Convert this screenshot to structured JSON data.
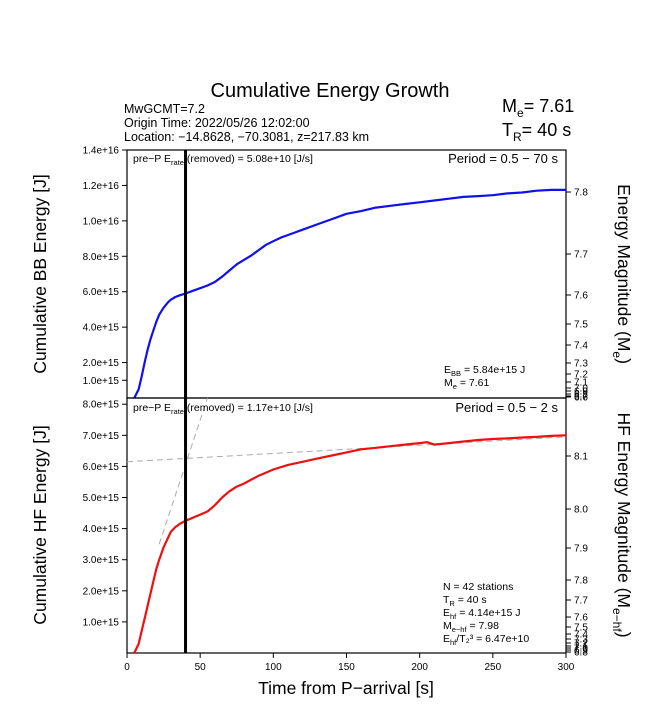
{
  "header": {
    "title": "Cumulative Energy Growth",
    "event_mag": "MwGCMT=7.2",
    "origin_time": "Origin Time: 2022/05/26 12:02:00",
    "location": "Location: −14.8628, −70.3081, z=217.83 km",
    "me_label": "M",
    "me_sub": "e",
    "me_value": "= 7.61",
    "tr_label": "T",
    "tr_sub": "R",
    "tr_value": "= 40 s"
  },
  "chart_data": [
    {
      "type": "line",
      "panel": "top",
      "xlim": [
        0,
        300
      ],
      "ylim": [
        0,
        1.4e+16
      ],
      "yticks": [
        "1.0e+15",
        "2.0e+15",
        "4.0e+15",
        "6.0e+15",
        "8.0e+15",
        "1.0e+16",
        "1.2e+16",
        "1.4e+16"
      ],
      "ytick_values": [
        1000000000000000.0,
        2000000000000000.0,
        4000000000000000.0,
        6000000000000000.0,
        8000000000000000.0,
        1e+16,
        1.2e+16,
        1.4e+16
      ],
      "right_ticks": [
        "6.6",
        "6.7",
        "6.8",
        "6.9",
        "7.0",
        "7.1",
        "7.2",
        "7.3",
        "7.4",
        "7.5",
        "7.6",
        "7.7",
        "7.8"
      ],
      "right_tick_values": [
        6.6,
        6.7,
        6.8,
        6.9,
        7.0,
        7.1,
        7.2,
        7.3,
        7.4,
        7.5,
        7.6,
        7.7,
        7.8
      ],
      "ylabel": "Cumulative BB Energy [J]",
      "ylabel_right": "Energy Magnitude (M",
      "ylabel_right_sub": "e",
      "ylabel_right_end": ")",
      "pre_p_a": "pre−P E",
      "pre_p_sub": "rate",
      "pre_p_b": " (removed) = 5.08e+10 [J/s]",
      "period": "Period = 0.5 − 70 s",
      "stat1_a": "E",
      "stat1_sub": "BB",
      "stat1_b": " = 5.84e+15 J",
      "stat2_a": "M",
      "stat2_sub": "e",
      "stat2_b": " = 7.61",
      "series": [
        {
          "color": "#1010ee",
          "x": [
            5,
            8,
            10,
            12,
            14,
            16,
            18,
            20,
            22,
            25,
            28,
            30,
            33,
            36,
            40,
            45,
            50,
            55,
            60,
            65,
            70,
            75,
            80,
            85,
            90,
            95,
            100,
            105,
            110,
            115,
            120,
            130,
            140,
            150,
            160,
            170,
            180,
            190,
            200,
            210,
            220,
            230,
            240,
            250,
            260,
            270,
            280,
            290,
            300
          ],
          "y": [
            0,
            500000000000000.0,
            1200000000000000.0,
            2000000000000000.0,
            2700000000000000.0,
            3300000000000000.0,
            3800000000000000.0,
            4300000000000000.0,
            4700000000000000.0,
            5100000000000000.0,
            5400000000000000.0,
            5550000000000000.0,
            5700000000000000.0,
            5800000000000000.0,
            5900000000000000.0,
            6050000000000000.0,
            6200000000000000.0,
            6350000000000000.0,
            6550000000000000.0,
            6850000000000000.0,
            7200000000000000.0,
            7550000000000000.0,
            7800000000000000.0,
            8050000000000000.0,
            8350000000000000.0,
            8650000000000000.0,
            8850000000000000.0,
            9050000000000000.0,
            9200000000000000.0,
            9350000000000000.0,
            9500000000000000.0,
            9800000000000000.0,
            1.01e+16,
            1.04e+16,
            1.055e+16,
            1.075e+16,
            1.085e+16,
            1.095e+16,
            1.105e+16,
            1.115e+16,
            1.125e+16,
            1.135e+16,
            1.14e+16,
            1.145e+16,
            1.155e+16,
            1.16e+16,
            1.17e+16,
            1.175e+16,
            1.175e+16
          ]
        }
      ],
      "vline_x": 40
    },
    {
      "type": "line",
      "panel": "bottom",
      "xlim": [
        0,
        300
      ],
      "ylim": [
        0,
        8200000000000000.0
      ],
      "xticks": [
        "0",
        "50",
        "100",
        "150",
        "200",
        "250",
        "300"
      ],
      "xtick_values": [
        0,
        50,
        100,
        150,
        200,
        250,
        300
      ],
      "xlabel": "Time from P−arrival [s]",
      "yticks": [
        "1.0e+15",
        "2.0e+15",
        "3.0e+15",
        "4.0e+15",
        "5.0e+15",
        "6.0e+15",
        "7.0e+15",
        "8.0e+15"
      ],
      "ytick_values": [
        1000000000000000.0,
        2000000000000000.0,
        3000000000000000.0,
        4000000000000000.0,
        5000000000000000.0,
        6000000000000000.0,
        7000000000000000.0,
        8000000000000000.0
      ],
      "right_ticks": [
        "6.8",
        "6.9",
        "7.0",
        "7.1",
        "7.2",
        "7.3",
        "7.4",
        "7.5",
        "7.6",
        "7.7",
        "7.8",
        "7.9",
        "8.0",
        "8.1"
      ],
      "right_tick_values": [
        6.8,
        6.9,
        7.0,
        7.1,
        7.2,
        7.3,
        7.4,
        7.5,
        7.6,
        7.7,
        7.8,
        7.9,
        8.0,
        8.1
      ],
      "ylabel": "Cumulative HF Energy [J]",
      "ylabel_right": "HF Energy Magnitude (M",
      "ylabel_right_sub": "e−hf",
      "ylabel_right_end": ")",
      "pre_p_a": "pre−P E",
      "pre_p_sub": "rate",
      "pre_p_b": " (removed) = 1.17e+10 [J/s]",
      "period": "Period = 0.5 − 2 s",
      "stats": [
        {
          "a": "N = 42 stations",
          "sub": "",
          "b": ""
        },
        {
          "a": "T",
          "sub": "R",
          "b": " = 40  s"
        },
        {
          "a": "E",
          "sub": "hf",
          "b": " = 4.14e+15 J"
        },
        {
          "a": "M",
          "sub": "e−hf",
          "b": " = 7.98"
        },
        {
          "a": "E",
          "sub": "hf",
          "b": "/T₂³ =  6.47e+10"
        }
      ],
      "series": [
        {
          "color": "#ee1010",
          "x": [
            5,
            8,
            10,
            12,
            14,
            16,
            18,
            20,
            22,
            25,
            28,
            30,
            33,
            36,
            40,
            45,
            50,
            55,
            60,
            65,
            70,
            75,
            80,
            90,
            100,
            110,
            120,
            130,
            140,
            150,
            160,
            170,
            180,
            190,
            200,
            205,
            210,
            220,
            230,
            240,
            250,
            260,
            270,
            280,
            290,
            300
          ],
          "y": [
            0,
            300000000000000.0,
            700000000000000.0,
            1100000000000000.0,
            1500000000000000.0,
            1900000000000000.0,
            2300000000000000.0,
            2700000000000000.0,
            3000000000000000.0,
            3400000000000000.0,
            3700000000000000.0,
            3900000000000000.0,
            4050000000000000.0,
            4150000000000000.0,
            4250000000000000.0,
            4350000000000000.0,
            4450000000000000.0,
            4550000000000000.0,
            4750000000000000.0,
            5000000000000000.0,
            5200000000000000.0,
            5350000000000000.0,
            5450000000000000.0,
            5700000000000000.0,
            5900000000000000.0,
            6050000000000000.0,
            6150000000000000.0,
            6250000000000000.0,
            6350000000000000.0,
            6450000000000000.0,
            6550000000000000.0,
            6600000000000000.0,
            6650000000000000.0,
            6700000000000000.0,
            6750000000000000.0,
            6780000000000000.0,
            6700000000000000.0,
            6750000000000000.0,
            6800000000000000.0,
            6850000000000000.0,
            6880000000000000.0,
            6900000000000000.0,
            6930000000000000.0,
            6950000000000000.0,
            6980000000000000.0,
            7000000000000000.0
          ]
        }
      ],
      "dashed_lines": [
        {
          "x": [
            0,
            300
          ],
          "y": [
            6150000000000000.0,
            6950000000000000.0
          ]
        },
        {
          "x": [
            22,
            55
          ],
          "y": [
            3500000000000000.0,
            8200000000000000.0
          ]
        }
      ],
      "vline_x": 40
    }
  ]
}
